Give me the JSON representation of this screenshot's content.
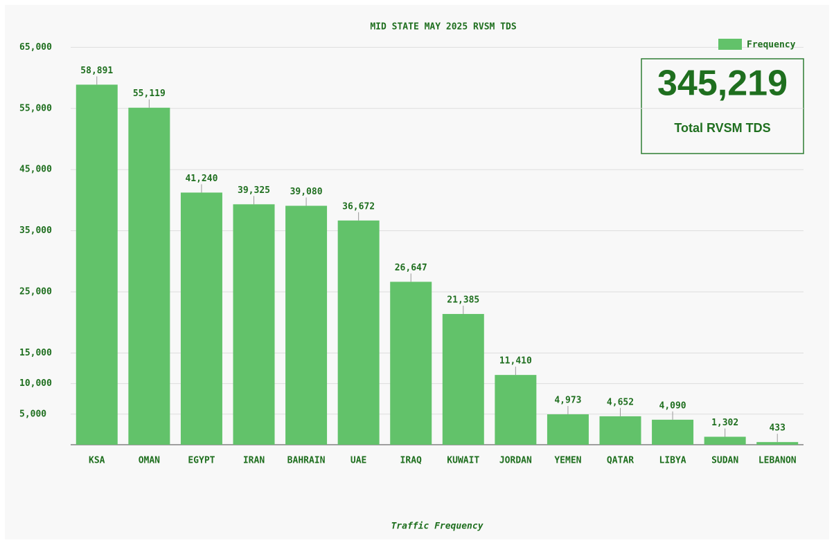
{
  "chart_data": {
    "type": "bar",
    "title": "MID STATE MAY 2025 RVSM TDS",
    "x_label": "Traffic Frequency",
    "categories": [
      "KSA",
      "OMAN",
      "EGYPT",
      "IRAN",
      "BAHRAIN",
      "UAE",
      "IRAQ",
      "KUWAIT",
      "JORDAN",
      "YEMEN",
      "QATAR",
      "LIBYA",
      "SUDAN",
      "LEBANON"
    ],
    "series": [
      {
        "name": "Frequency",
        "color": "#62c26a",
        "values": [
          58891,
          55119,
          41240,
          39325,
          39080,
          36672,
          26647,
          21385,
          11410,
          4973,
          4652,
          4090,
          1302,
          433
        ],
        "value_labels": [
          "58,891",
          "55,119",
          "41,240",
          "39,325",
          "39,080",
          "36,672",
          "26,647",
          "21,385",
          "11,410",
          "4,973",
          "4,652",
          "4,090",
          "1,302",
          "433"
        ]
      }
    ],
    "ylim": [
      0,
      65000
    ],
    "yticks": [
      {
        "value": 5000,
        "label": "5,000"
      },
      {
        "value": 10000,
        "label": "10,000"
      },
      {
        "value": 15000,
        "label": "15,000"
      },
      {
        "value": 25000,
        "label": "25,000"
      },
      {
        "value": 35000,
        "label": "35,000"
      },
      {
        "value": 45000,
        "label": "45,000"
      },
      {
        "value": 55000,
        "label": "55,000"
      },
      {
        "value": 65000,
        "label": "65,000"
      }
    ],
    "grid": true,
    "legend": "top-right",
    "total": {
      "label": "345,219",
      "caption": "Total RVSM TDS"
    }
  }
}
